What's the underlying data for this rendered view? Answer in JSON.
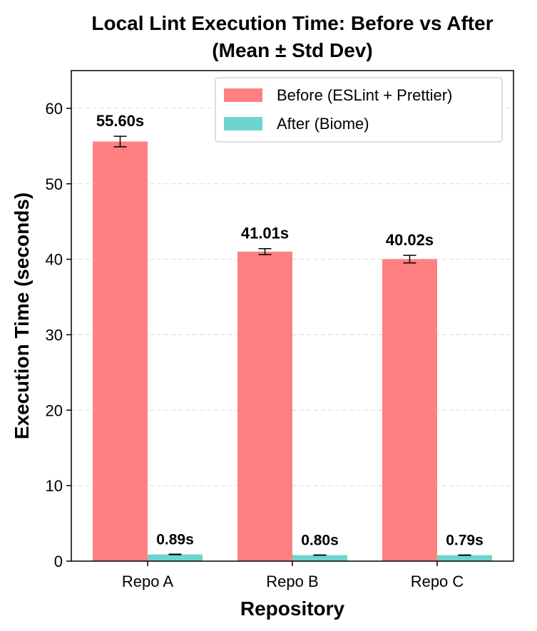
{
  "chart_data": {
    "type": "bar",
    "title_line1": "Local Lint Execution Time: Before vs After",
    "title_line2": "(Mean ± Std Dev)",
    "xlabel": "Repository",
    "ylabel": "Execution Time (seconds)",
    "ylim": [
      0,
      65
    ],
    "yticks": [
      0,
      10,
      20,
      30,
      40,
      50,
      60
    ],
    "grid": "y-dashed",
    "legend_position": "top-right",
    "categories": [
      "Repo A",
      "Repo B",
      "Repo C"
    ],
    "series": [
      {
        "name": "Before (ESLint + Prettier)",
        "color": "#FF8080",
        "values": [
          55.6,
          41.01,
          40.02
        ],
        "errors": [
          0.7,
          0.4,
          0.5
        ],
        "labels": [
          "55.60s",
          "41.01s",
          "40.02s"
        ]
      },
      {
        "name": "After (Biome)",
        "color": "#6DD5CE",
        "values": [
          0.89,
          0.8,
          0.79
        ],
        "errors": [
          0.03,
          0.02,
          0.02
        ],
        "labels": [
          "0.89s",
          "0.80s",
          "0.79s"
        ]
      }
    ]
  }
}
